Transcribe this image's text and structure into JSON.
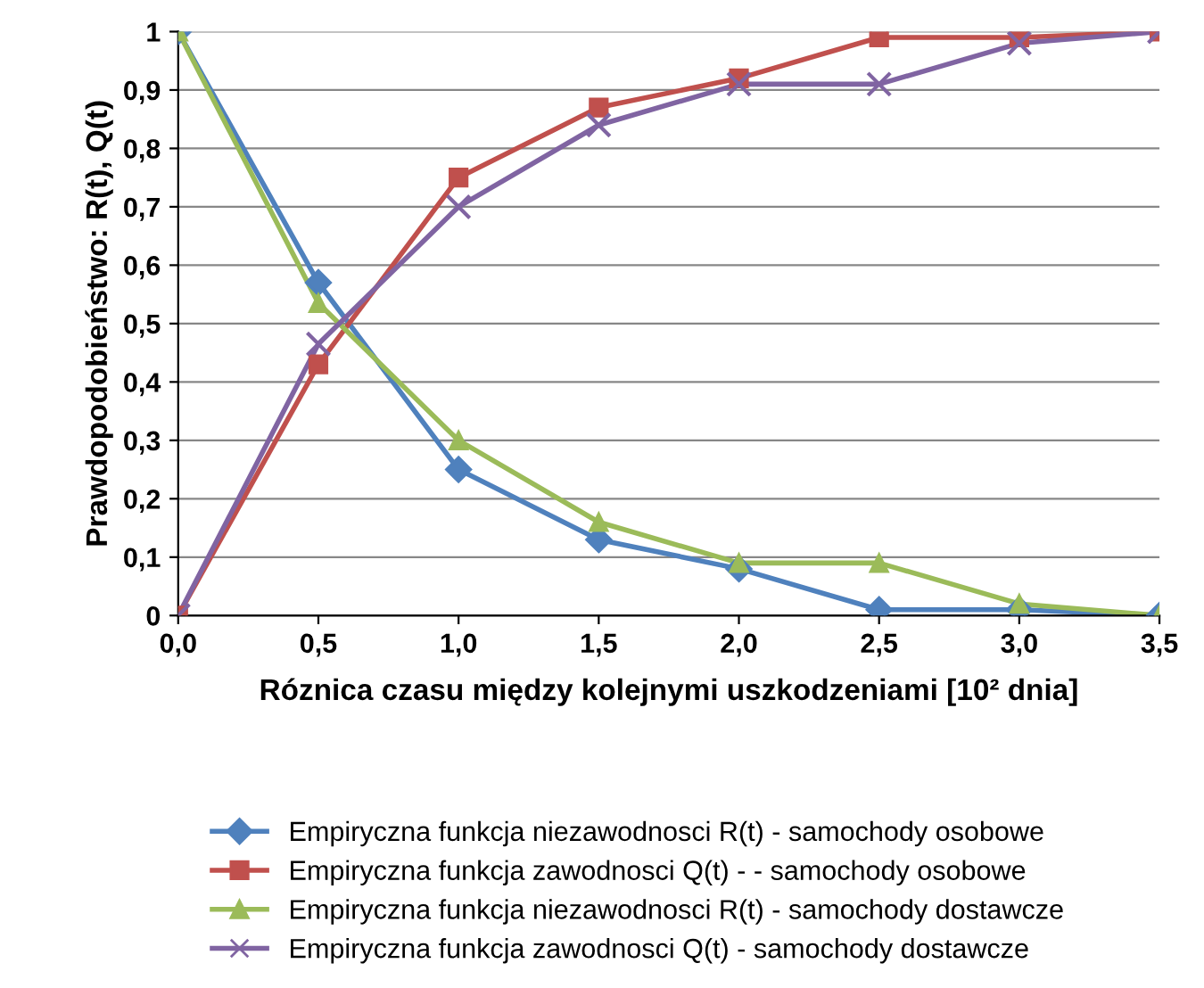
{
  "chart_data": {
    "type": "line",
    "xlabel": "Róznica czasu między kolejnymi uszkodzeniami [10² dnia]",
    "ylabel": "Prawdopodobieństwo: R(t), Q(t)",
    "x": [
      0,
      0.5,
      1,
      1.5,
      2,
      2.5,
      3,
      3.5
    ],
    "xlim": [
      0,
      3.5
    ],
    "xticks": [
      {
        "value": 0,
        "label": "0,0"
      },
      {
        "value": 0.5,
        "label": "0,5"
      },
      {
        "value": 1,
        "label": "1,0"
      },
      {
        "value": 1.5,
        "label": "1,5"
      },
      {
        "value": 2,
        "label": "2,0"
      },
      {
        "value": 2.5,
        "label": "2,5"
      },
      {
        "value": 3,
        "label": "3,0"
      },
      {
        "value": 3.5,
        "label": "3,5"
      }
    ],
    "ylim": [
      0,
      1
    ],
    "yticks": [
      0,
      {
        "value": 0.1,
        "label": "0,1"
      },
      {
        "value": 0.2,
        "label": "0,2"
      },
      {
        "value": 0.3,
        "label": "0,3"
      },
      {
        "value": 0.4,
        "label": "0,4"
      },
      {
        "value": 0.5,
        "label": "0,5"
      },
      {
        "value": 0.6,
        "label": "0,6"
      },
      {
        "value": 0.7,
        "label": "0,7"
      },
      {
        "value": 0.8,
        "label": "0,8"
      },
      {
        "value": 0.9,
        "label": "0,9"
      },
      1
    ],
    "grid": "y",
    "legend": "bottom",
    "line_style": "solid",
    "series": [
      {
        "name": "Empiryczna funkcja niezawodnosci R(t) - samochody osobowe",
        "color": "#4f81bd",
        "marker": "diamond",
        "values": [
          1,
          0.57,
          0.25,
          0.13,
          0.08,
          0.01,
          0.01,
          0
        ]
      },
      {
        "name": "Empiryczna funkcja zawodnosci Q(t) - - samochody osobowe",
        "color": "#c0504d",
        "marker": "square",
        "values": [
          0,
          0.43,
          0.75,
          0.87,
          0.92,
          0.99,
          0.99,
          1
        ]
      },
      {
        "name": "Empiryczna funkcja niezawodnosci R(t) - samochody dostawcze",
        "color": "#9bbb59",
        "marker": "triangle",
        "values": [
          1,
          0.535,
          0.3,
          0.16,
          0.09,
          0.09,
          0.02,
          0
        ]
      },
      {
        "name": "Empiryczna funkcja zawodnosci Q(t) - samochody dostawcze",
        "color": "#8064a2",
        "marker": "cross",
        "values": [
          0,
          0.465,
          0.7,
          0.84,
          0.91,
          0.91,
          0.98,
          1
        ]
      }
    ]
  }
}
